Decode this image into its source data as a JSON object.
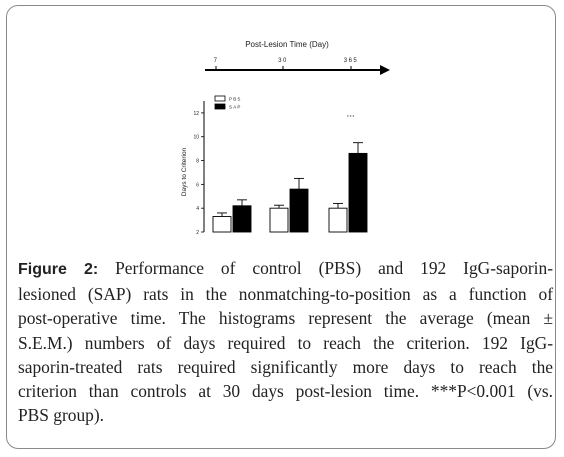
{
  "chart_data": {
    "type": "bar",
    "timeline": {
      "title": "Post-Lesion Time (Day)",
      "ticks": [
        "7",
        "30",
        "365"
      ]
    },
    "categories": [
      "7",
      "30",
      "365"
    ],
    "series": [
      {
        "name": "PBS",
        "color": "#ffffff",
        "values": [
          3.3,
          4.0,
          4.0
        ],
        "errors": [
          0.3,
          0.25,
          0.4
        ]
      },
      {
        "name": "SAP",
        "color": "#000000",
        "values": [
          4.2,
          5.6,
          8.6
        ],
        "errors": [
          0.5,
          0.9,
          0.9
        ]
      }
    ],
    "ylabel": "Days to Criterion",
    "ylim": [
      2,
      13
    ],
    "yticks": [
      "2",
      "4",
      "6",
      "8",
      "10",
      "12"
    ],
    "annotation": {
      "text": "***",
      "category": "365"
    },
    "legend_position": "top-left",
    "grid": false
  },
  "caption": {
    "label": "Figure 2:",
    "lines": [
      " Performance of control (PBS) and 192 IgG-saporin-",
      "lesioned (SAP) rats in the nonmatching-to-position as a function of",
      "post-operative time. The histograms represent the average (mean ±",
      "S.E.M.) numbers of days required to reach the criterion. 192 IgG-",
      "saporin-treated rats required significantly more days to reach the",
      "criterion than controls at 30 days post-lesion time. ***P<0.001 (vs.",
      "PBS group)."
    ]
  }
}
